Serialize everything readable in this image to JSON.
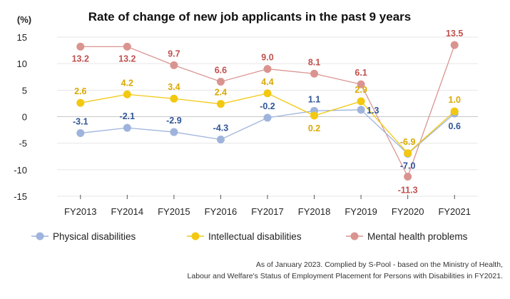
{
  "chart_data": {
    "type": "line",
    "title": "Rate of change of new job applicants in the past 9 years",
    "ylabel": "(%)",
    "xlabel": "",
    "categories": [
      "FY2013",
      "FY2014",
      "FY2015",
      "FY2016",
      "FY2017",
      "FY2018",
      "FY2019",
      "FY2020",
      "FY2021"
    ],
    "ylim": [
      -15,
      15
    ],
    "yticks": [
      15,
      10,
      5,
      0,
      -5,
      -10,
      -15
    ],
    "grid": true,
    "legend_position": "bottom",
    "series": [
      {
        "name": "Physical disabilities",
        "values": [
          -3.1,
          -2.1,
          -2.9,
          -4.3,
          -0.2,
          1.1,
          1.3,
          -7.0,
          0.6
        ],
        "color": "#9fb4dc",
        "label_color": "#2f5597"
      },
      {
        "name": "Intellectual disabilities",
        "values": [
          2.6,
          4.2,
          3.4,
          2.4,
          4.4,
          0.2,
          2.9,
          -6.9,
          1.0
        ],
        "color": "#f2c811",
        "label_color": "#d9a900"
      },
      {
        "name": "Mental health problems",
        "values": [
          13.2,
          13.2,
          9.7,
          6.6,
          9.0,
          8.1,
          6.1,
          -11.3,
          13.5
        ],
        "color": "#da9490",
        "label_color": "#c0504d"
      }
    ]
  },
  "footer": {
    "line1": "As of January 2023. Complied by S-Pool - based on the Ministry of Health,",
    "line2": "Labour and Welfare's Status of Employment Placement for Persons with Disabilities in FY2021."
  }
}
